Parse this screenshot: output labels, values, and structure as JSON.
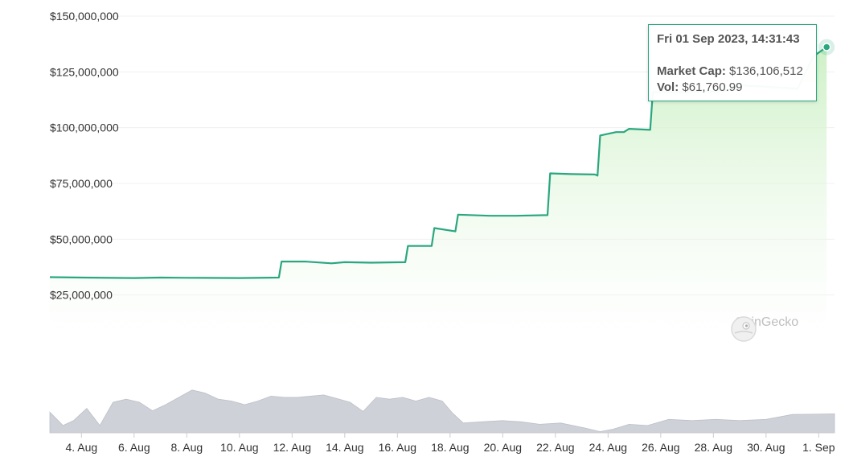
{
  "chart_data": [
    {
      "type": "line",
      "title": "",
      "xlabel": "",
      "ylabel": "",
      "ylim": [
        0,
        150000000
      ],
      "yticks": [
        "$25,000,000",
        "$50,000,000",
        "$75,000,000",
        "$100,000,000",
        "$125,000,000",
        "$150,000,000"
      ],
      "ytick_values": [
        25000000,
        50000000,
        75000000,
        100000000,
        125000000,
        150000000
      ],
      "xticks": [
        "4. Aug",
        "6. Aug",
        "8. Aug",
        "10. Aug",
        "12. Aug",
        "14. Aug",
        "16. Aug",
        "18. Aug",
        "20. Aug",
        "22. Aug",
        "24. Aug",
        "26. Aug",
        "28. Aug",
        "30. Aug",
        "1. Sep"
      ],
      "xtick_days": [
        4,
        6,
        8,
        10,
        12,
        14,
        16,
        18,
        20,
        22,
        24,
        26,
        28,
        30,
        32
      ],
      "xlim_days": [
        2.8,
        32.6
      ],
      "grid": true,
      "series": [
        {
          "values": [
            [
              2.8,
              33000000
            ],
            [
              4,
              32800000
            ],
            [
              6,
              32600000
            ],
            [
              7,
              32800000
            ],
            [
              8,
              32700000
            ],
            [
              10,
              32600000
            ],
            [
              11.5,
              32800000
            ],
            [
              11.6,
              40000000
            ],
            [
              12.5,
              40000000
            ],
            [
              13.5,
              39200000
            ],
            [
              14,
              39700000
            ],
            [
              15,
              39500000
            ],
            [
              16.3,
              39700000
            ],
            [
              16.4,
              47000000
            ],
            [
              17.3,
              47000000
            ],
            [
              17.4,
              55000000
            ],
            [
              18.2,
              53500000
            ],
            [
              18.3,
              61000000
            ],
            [
              19.5,
              60500000
            ],
            [
              20.5,
              60500000
            ],
            [
              21.7,
              60800000
            ],
            [
              21.8,
              79500000
            ],
            [
              22.6,
              79200000
            ],
            [
              23.5,
              79000000
            ],
            [
              23.6,
              78500000
            ],
            [
              23.7,
              96500000
            ],
            [
              24.3,
              98000000
            ],
            [
              24.6,
              98000000
            ],
            [
              24.8,
              99500000
            ],
            [
              25.6,
              99000000
            ],
            [
              25.7,
              116000000
            ],
            [
              27,
              116000000
            ],
            [
              28.5,
              116500000
            ],
            [
              29,
              119000000
            ],
            [
              31.2,
              117500000
            ],
            [
              31.4,
              122500000
            ],
            [
              31.8,
              132000000
            ],
            [
              32.3,
              136106512
            ]
          ]
        }
      ],
      "volume": {
        "label": "Vol",
        "values": [
          [
            2.8,
            0.34
          ],
          [
            3.3,
            0.12
          ],
          [
            3.7,
            0.2
          ],
          [
            4.2,
            0.4
          ],
          [
            4.7,
            0.12
          ],
          [
            5.2,
            0.5
          ],
          [
            5.7,
            0.55
          ],
          [
            6.2,
            0.5
          ],
          [
            6.7,
            0.36
          ],
          [
            7.2,
            0.46
          ],
          [
            7.7,
            0.58
          ],
          [
            8.2,
            0.7
          ],
          [
            8.7,
            0.65
          ],
          [
            9.2,
            0.55
          ],
          [
            9.7,
            0.52
          ],
          [
            10.2,
            0.46
          ],
          [
            10.7,
            0.52
          ],
          [
            11.2,
            0.6
          ],
          [
            11.7,
            0.58
          ],
          [
            12.2,
            0.58
          ],
          [
            12.7,
            0.6
          ],
          [
            13.2,
            0.62
          ],
          [
            13.7,
            0.56
          ],
          [
            14.2,
            0.5
          ],
          [
            14.7,
            0.35
          ],
          [
            15.2,
            0.58
          ],
          [
            15.7,
            0.55
          ],
          [
            16.2,
            0.58
          ],
          [
            16.7,
            0.52
          ],
          [
            17.2,
            0.58
          ],
          [
            17.7,
            0.52
          ],
          [
            18.1,
            0.32
          ],
          [
            18.5,
            0.16
          ],
          [
            19.2,
            0.18
          ],
          [
            20,
            0.2
          ],
          [
            20.7,
            0.18
          ],
          [
            21.4,
            0.14
          ],
          [
            22.2,
            0.16
          ],
          [
            23.1,
            0.08
          ],
          [
            23.7,
            0.02
          ],
          [
            24.2,
            0.06
          ],
          [
            24.8,
            0.14
          ],
          [
            25.5,
            0.12
          ],
          [
            26.3,
            0.22
          ],
          [
            27.2,
            0.2
          ],
          [
            28.1,
            0.22
          ],
          [
            29,
            0.2
          ],
          [
            30,
            0.22
          ],
          [
            31,
            0.3
          ],
          [
            32.6,
            0.31
          ]
        ]
      }
    }
  ],
  "tooltip": {
    "title": "Fri 01 Sep 2023, 14:31:43",
    "market_cap_label": "Market Cap:",
    "market_cap_value": "$136,106,512",
    "vol_label": "Vol:",
    "vol_value": "$61,760.99"
  },
  "brand": {
    "text": "CoinGecko",
    "icon": "gecko-logo-icon"
  },
  "colors": {
    "line": "#2aa77f",
    "area_top": "#c8efc0",
    "area_bottom": "#ffffff",
    "volume": "#c9cdd4",
    "grid": "#f0f0f0"
  }
}
